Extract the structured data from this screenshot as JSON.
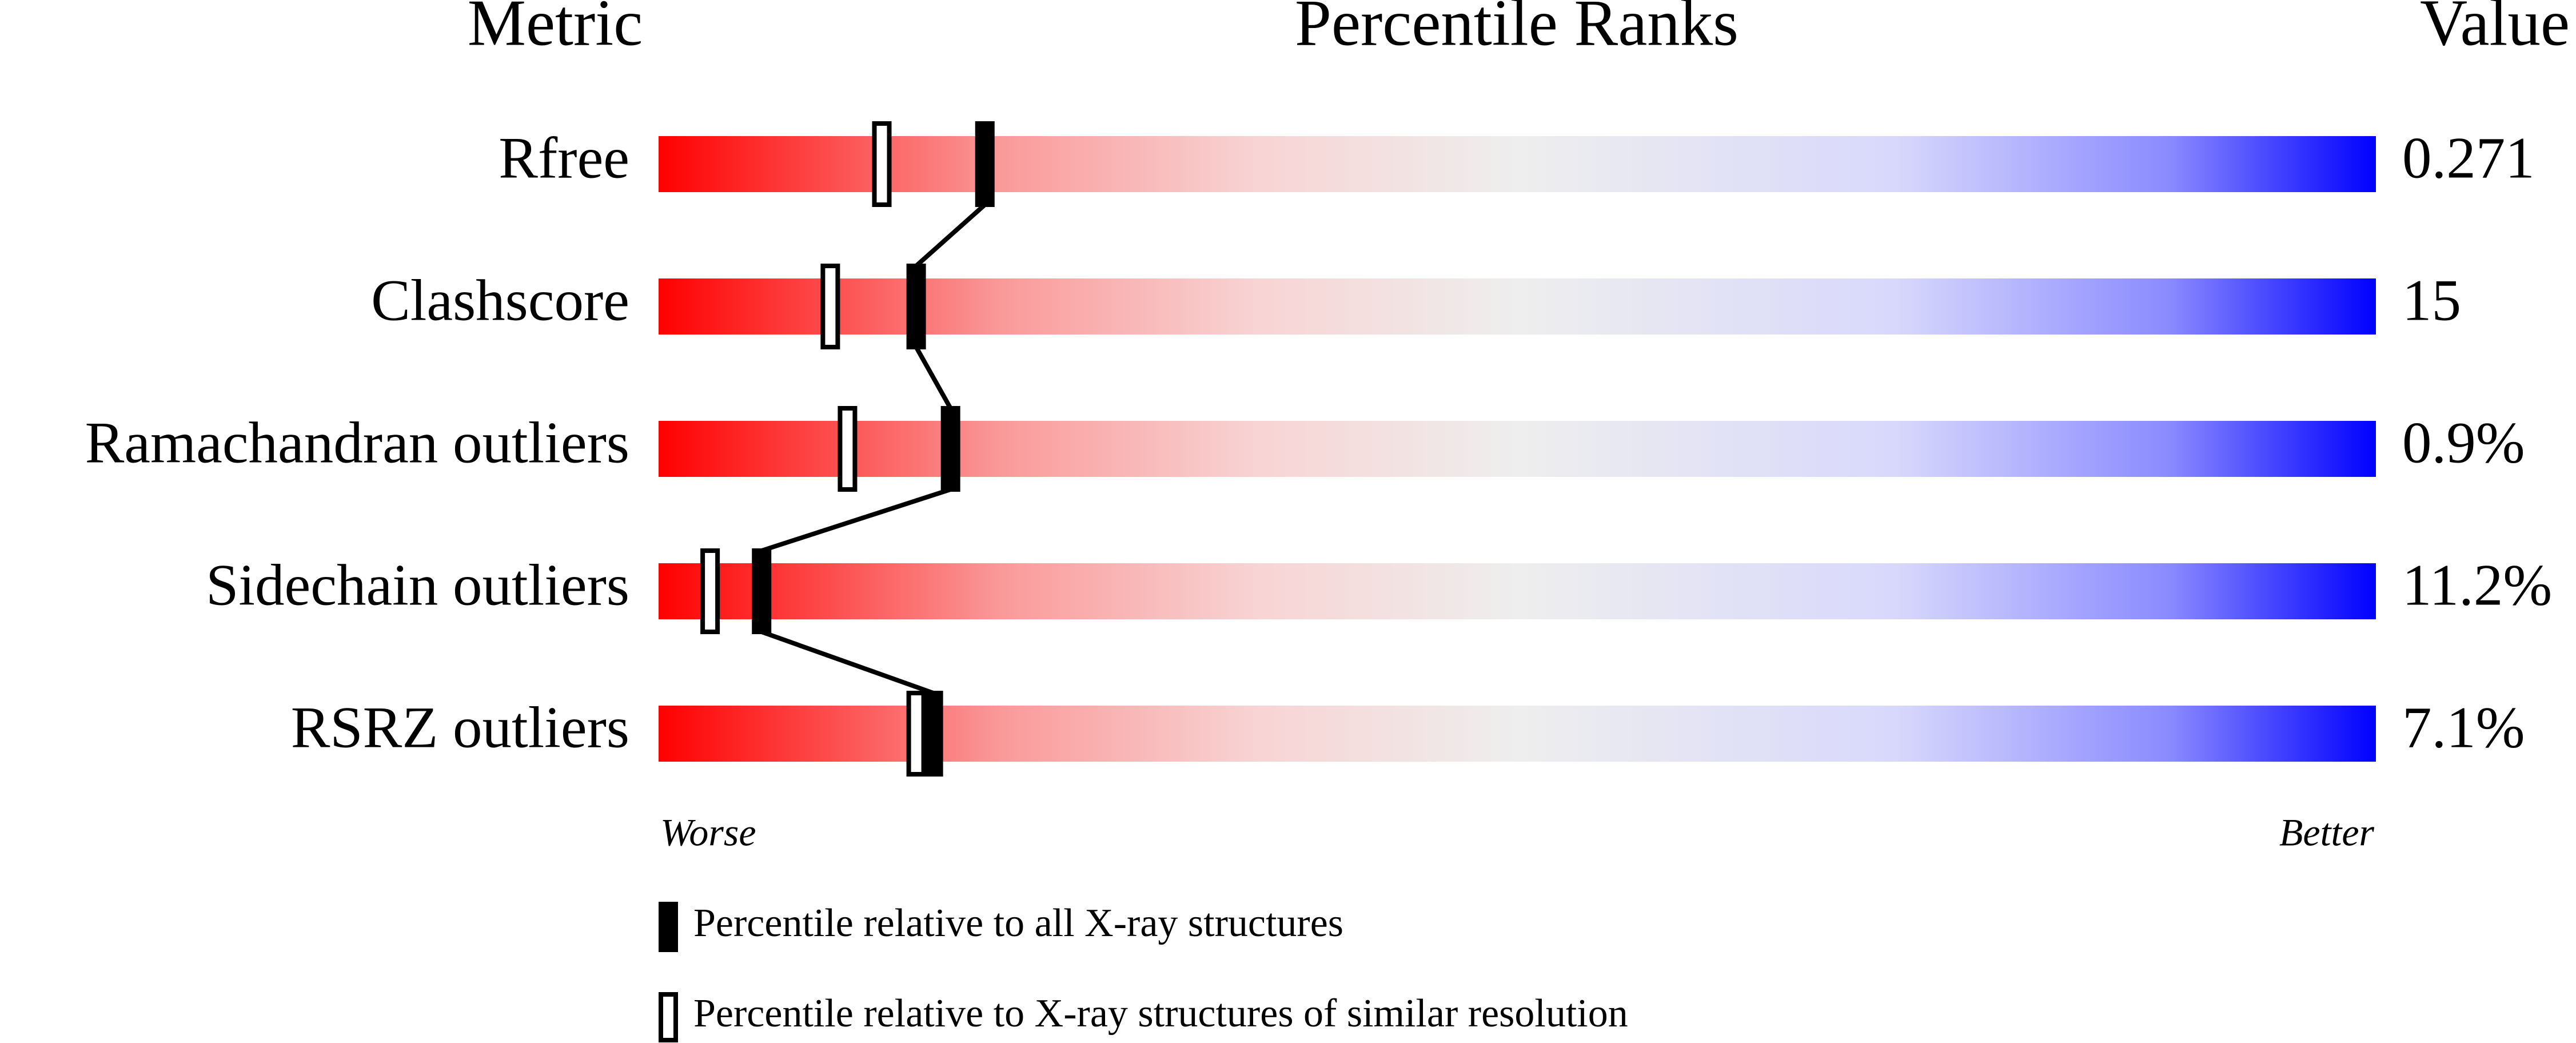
{
  "chart_data": {
    "type": "slider",
    "headers": {
      "metric": "Metric",
      "percentile": "Percentile Ranks",
      "value": "Value"
    },
    "categories": [
      "Rfree",
      "Clashscore",
      "Ramachandran outliers",
      "Sidechain outliers",
      "RSRZ outliers"
    ],
    "metric_values": [
      "0.271",
      "15",
      "0.9%",
      "11.2%",
      "7.1%"
    ],
    "series": [
      {
        "name": "Percentile relative to all X-ray structures",
        "style": "filled",
        "color": "#000000",
        "values": [
          19,
          15,
          17,
          6,
          16
        ]
      },
      {
        "name": "Percentile relative to X-ray structures of similar resolution",
        "style": "open",
        "color": "#000000",
        "values": [
          13,
          10,
          11,
          3,
          15
        ]
      }
    ],
    "xlim": [
      0,
      100
    ],
    "axis_ends": {
      "low": "Worse",
      "high": "Better"
    }
  }
}
